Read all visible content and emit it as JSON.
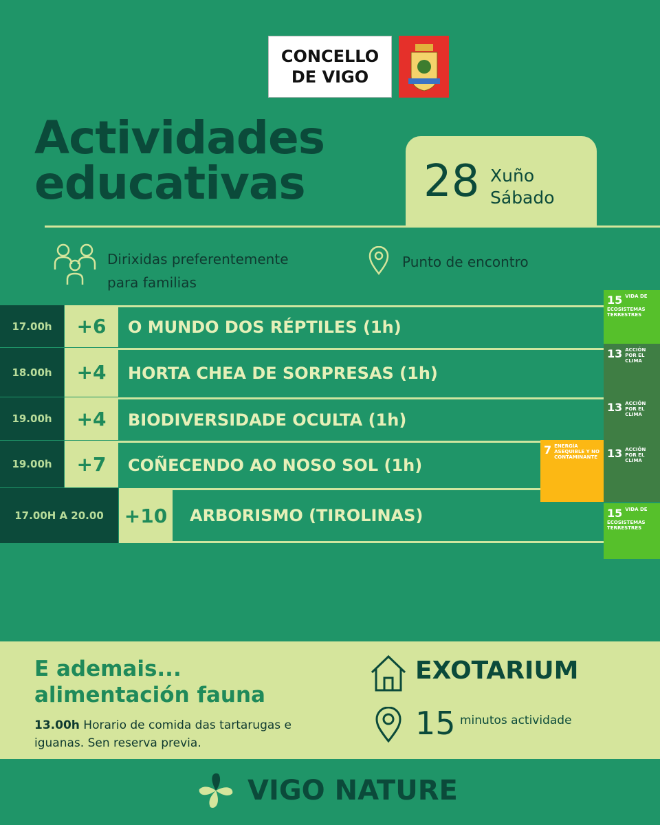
{
  "header": {
    "logo_lines": [
      "CONCELLO",
      "DE VIGO"
    ],
    "title_lines": [
      "Actividades",
      "educativas"
    ],
    "date": {
      "day": "28",
      "month": "Xuño",
      "weekday": "Sábado"
    }
  },
  "info": {
    "audience_lines": [
      "Dirixidas preferentemente",
      "para familias"
    ],
    "meeting_point": "Punto de encontro"
  },
  "activities": [
    {
      "time": "17.00h",
      "age": "+6",
      "name": "O MUNDO DOS RÉPTILES (1h)"
    },
    {
      "time": "18.00h",
      "age": "+4",
      "name": "HORTA CHEA DE SORPRESAS (1h)"
    },
    {
      "time": "19.00h",
      "age": "+4",
      "name": "BIODIVERSIDADE OCULTA (1h)"
    },
    {
      "time": "19.00h",
      "age": "+7",
      "name": "COÑECENDO AO NOSO SOL (1h)"
    },
    {
      "time": "17.00H A 20.00",
      "age": "+10",
      "name": "ARBORISMO (TIROLINAS)"
    }
  ],
  "sdgs": [
    {
      "number": "15",
      "label": "VIDA DE ECOSISTEMAS TERRESTRES",
      "color": "#56c02b"
    },
    {
      "number": "13",
      "label": "ACCIÓN POR EL CLIMA",
      "color": "#3f7e44"
    },
    {
      "number": "13",
      "label": "ACCIÓN POR EL CLIMA",
      "color": "#3f7e44"
    },
    {
      "number": "13",
      "label": "ACCIÓN POR EL CLIMA",
      "color": "#3f7e44"
    },
    {
      "number": "7",
      "label": "ENERGÍA ASEQUIBLE Y NO CONTAMINANTE",
      "color": "#fcb814"
    },
    {
      "number": "15",
      "label": "VIDA DE ECOSISTEMAS TERRESTRES",
      "color": "#56c02b"
    }
  ],
  "extra": {
    "title_lines": [
      "E ademais...",
      "alimentación fauna"
    ],
    "time": "13.00h",
    "description": "Horario de comida das tartarugas e iguanas. Sen reserva previa."
  },
  "exotarium": {
    "name": "EXOTARIUM",
    "duration": "15",
    "unit": "minutos actividade"
  },
  "footer": {
    "brand": "VIGO NATURE"
  }
}
